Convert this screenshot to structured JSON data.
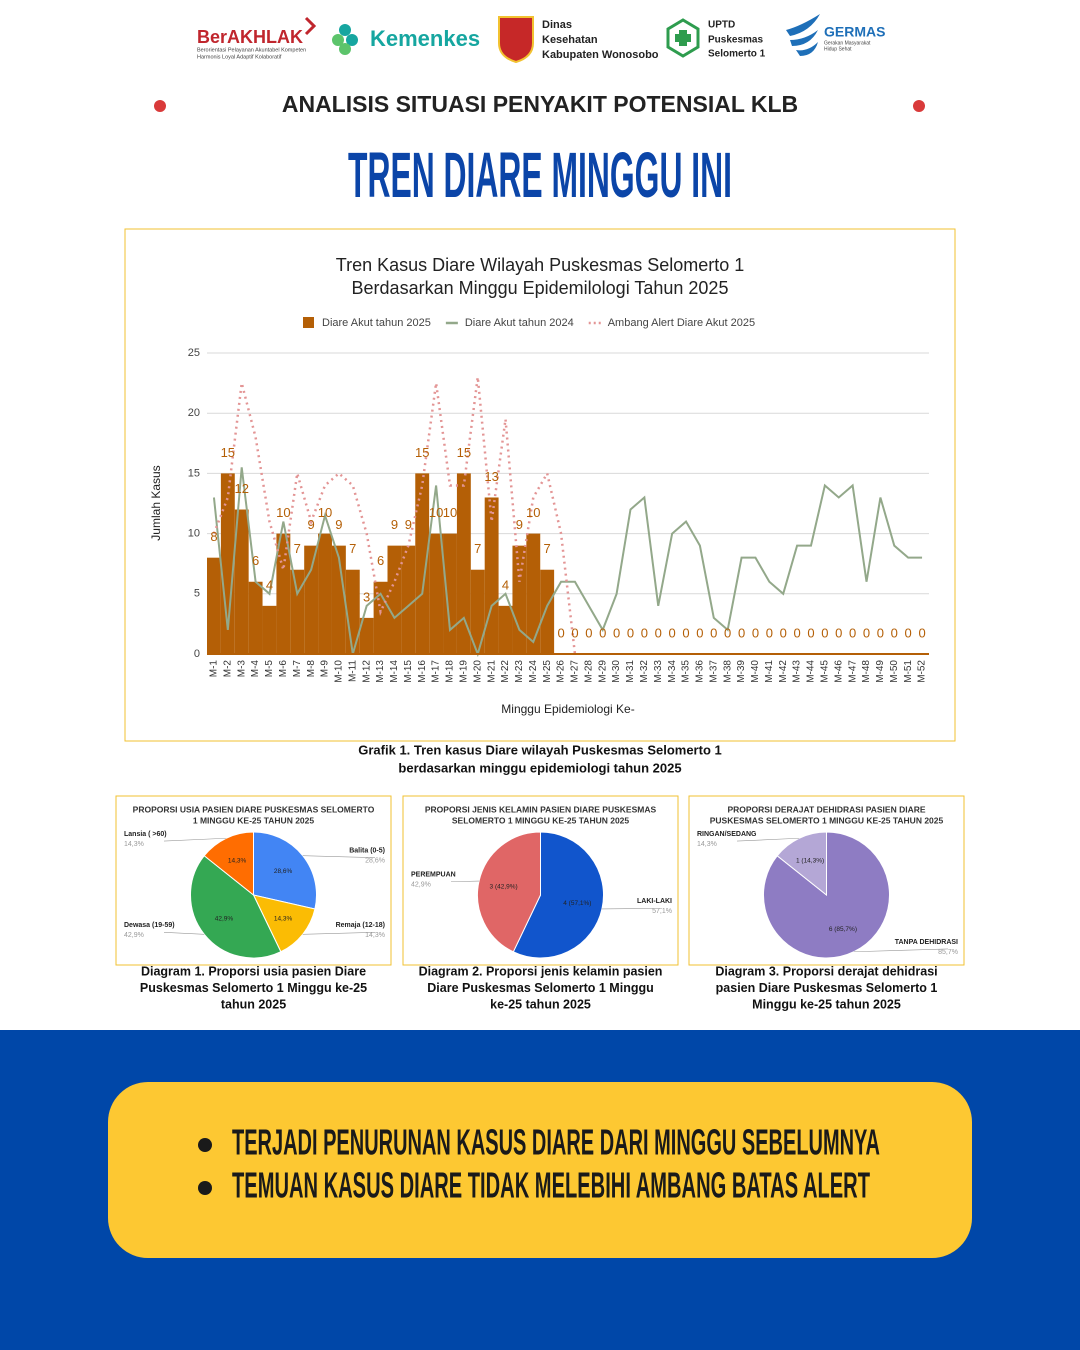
{
  "logos": {
    "berakhlak": "BerAKHLAK",
    "berakhlak_tagline": [
      "Berorientasi Pelayanan Akuntabel Kompeten",
      "Harmonis Loyal Adaptif Kolaboratif"
    ],
    "kemenkes": "Kemenkes",
    "dinas": [
      "Dinas",
      "Kesehatan",
      "Kabupaten Wonosobo"
    ],
    "uptd": [
      "UPTD",
      "Puskesmas",
      "Selomerto 1"
    ],
    "germas": "GERMAS",
    "germas_tagline": [
      "Gerakan Masyarakat",
      "Hidup Sehat"
    ]
  },
  "header_title": "ANALISIS SITUASI PENYAKIT POTENSIAL KLB",
  "title": "TREN DIARE MINGGU INI",
  "chart_data": [
    {
      "type": "combo",
      "title": [
        "Tren Kasus Diare Wilayah Puskesmas Selomerto 1",
        "Berdasarkan Minggu Epidemilologi Tahun 2025"
      ],
      "y_label": "Jumlah Kasus",
      "x_label": "Minggu Epidemiologi Ke-",
      "categories": [
        "M-1",
        "M-2",
        "M-3",
        "M-4",
        "M-5",
        "M-6",
        "M-7",
        "M-8",
        "M-9",
        "M-10",
        "M-11",
        "M-12",
        "M-13",
        "M-14",
        "M-15",
        "M-16",
        "M-17",
        "M-18",
        "M-19",
        "M-20",
        "M-21",
        "M-22",
        "M-23",
        "M-24",
        "M-25",
        "M-26",
        "M-27",
        "M-28",
        "M-29",
        "M-30",
        "M-31",
        "M-32",
        "M-33",
        "M-34",
        "M-35",
        "M-36",
        "M-37",
        "M-38",
        "M-39",
        "M-40",
        "M-41",
        "M-42",
        "M-43",
        "M-44",
        "M-45",
        "M-46",
        "M-47",
        "M-48",
        "M-49",
        "M-50",
        "M-51",
        "M-52"
      ],
      "ylim": [
        0,
        25
      ],
      "yticks": [
        0,
        5,
        10,
        15,
        20,
        25
      ],
      "grid": true,
      "series": [
        {
          "name": "Diare Akut tahun 2025",
          "type": "bar",
          "color": "#b45f06",
          "data_labels": true,
          "values": [
            8,
            15,
            12,
            6,
            4,
            10,
            7,
            9,
            10,
            9,
            7,
            3,
            6,
            9,
            9,
            15,
            10,
            10,
            15,
            7,
            13,
            4,
            9,
            10,
            7,
            0,
            0,
            0,
            0,
            0,
            0,
            0,
            0,
            0,
            0,
            0,
            0,
            0,
            0,
            0,
            0,
            0,
            0,
            0,
            0,
            0,
            0,
            0,
            0,
            0,
            0,
            0
          ]
        },
        {
          "name": "Diare Akut tahun 2024",
          "type": "line",
          "color": "#93a88a",
          "values": [
            13,
            2,
            15.5,
            6,
            5,
            11,
            5,
            7,
            11.5,
            8,
            0,
            4,
            5,
            3,
            4,
            5,
            14,
            2,
            3,
            0,
            4,
            5,
            2,
            1,
            4,
            6,
            6,
            4,
            2,
            5,
            12,
            13,
            4,
            10,
            11,
            9,
            3,
            2,
            8,
            8,
            6,
            5,
            9,
            9,
            14,
            13,
            14,
            6,
            13,
            9,
            8,
            8
          ]
        },
        {
          "name": "Ambang Alert Diare Akut 2025",
          "type": "line",
          "dashed": true,
          "color": "#e39595",
          "values": [
            10,
            13,
            22.5,
            18,
            11,
            7,
            15,
            11,
            14,
            15,
            14,
            10,
            3.5,
            6,
            9,
            14,
            22.5,
            14,
            14,
            23,
            11,
            19.5,
            6,
            13,
            15,
            10,
            0,
            null,
            null,
            null,
            null,
            null,
            null,
            null,
            null,
            null,
            null,
            null,
            null,
            null,
            null,
            null,
            null,
            null,
            null,
            null,
            null,
            null,
            null,
            null,
            null,
            null
          ]
        }
      ]
    },
    {
      "type": "pie",
      "title": [
        "PROPORSI USIA PASIEN DIARE PUSKESMAS SELOMERTO",
        "1 MINGGU KE-25 TAHUN 2025"
      ],
      "categories": [
        "Balita (0-5)",
        "Remaja (12-18)",
        "Dewasa (19-59)",
        "Lansia ( >60)"
      ],
      "values": [
        28.6,
        14.3,
        42.9,
        14.3
      ],
      "value_labels": [
        "28,6%",
        "14,3%",
        "42,9%",
        "14,3%"
      ],
      "colors": [
        "#4285f4",
        "#fbbc04",
        "#34a853",
        "#ff6d01"
      ]
    },
    {
      "type": "pie",
      "title": [
        "PROPORSI JENIS KELAMIN PASIEN DIARE PUSKESMAS",
        "SELOMERTO 1 MINGGU KE-25 TAHUN 2025"
      ],
      "categories": [
        "LAKI-LAKI",
        "PEREMPUAN"
      ],
      "values": [
        57.1,
        42.9
      ],
      "value_labels": [
        "57,1%",
        "42,9%"
      ],
      "inner_labels": [
        "4 (57,1%)",
        "3 (42,9%)"
      ],
      "colors": [
        "#1155cc",
        "#e06666"
      ]
    },
    {
      "type": "pie",
      "title": [
        "PROPORSI DERAJAT DEHIDRASI PASIEN DIARE",
        "PUSKESMAS SELOMERTO 1 MINGGU KE-25 TAHUN 2025"
      ],
      "categories": [
        "TANPA DEHIDRASI",
        "RINGAN/SEDANG"
      ],
      "values": [
        85.7,
        14.3
      ],
      "value_labels": [
        "85,7%",
        "14,3%"
      ],
      "inner_labels": [
        "6 (85,7%)",
        "1 (14,3%)"
      ],
      "colors": [
        "#8e7cc3",
        "#b4a7d6"
      ]
    }
  ],
  "captions": [
    [
      "Grafik 1. Tren kasus Diare wilayah Puskesmas Selomerto 1",
      "berdasarkan minggu epidemiologi tahun 2025"
    ],
    [
      "Diagram 1. Proporsi usia pasien Diare",
      "Puskesmas Selomerto 1 Minggu ke-25",
      "tahun 2025"
    ],
    [
      "Diagram 2. Proporsi jenis kelamin pasien",
      "Diare Puskesmas Selomerto 1 Minggu",
      "ke-25 tahun 2025"
    ],
    [
      "Diagram 3. Proporsi derajat dehidrasi",
      "pasien Diare Puskesmas Selomerto 1",
      "Minggu ke-25 tahun 2025"
    ]
  ],
  "conclusions": [
    "TERJADI PENURUNAN KASUS DIARE DARI MINGGU SEBELUMNYA",
    "TEMUAN KASUS DIARE TIDAK MELEBIHI AMBANG BATAS ALERT"
  ]
}
